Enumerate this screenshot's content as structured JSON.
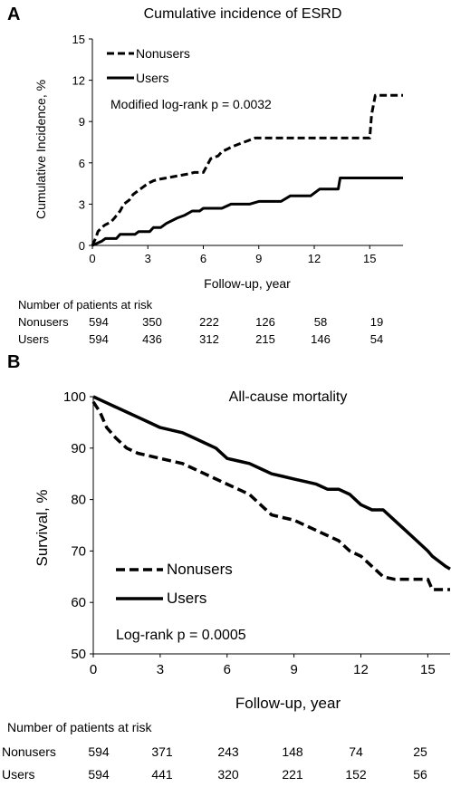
{
  "chart_data": [
    {
      "panel": "A",
      "type": "line",
      "title": "Cumulative incidence of ESRD",
      "xlabel": "Follow-up, year",
      "ylabel": "Cumulative Incidence, %",
      "xticks": [
        0,
        3,
        6,
        9,
        12,
        15
      ],
      "yticks": [
        0,
        3,
        6,
        9,
        12,
        15
      ],
      "xlim": [
        0,
        16.8
      ],
      "ylim": [
        0,
        15
      ],
      "legend_position": "top-left",
      "annotation": "Modified log-rank p = 0.0032",
      "series": [
        {
          "name": "Nonusers",
          "style": "dashed",
          "x": [
            0,
            0.2,
            0.3,
            0.5,
            0.7,
            1.0,
            1.2,
            1.5,
            1.7,
            2.0,
            2.2,
            2.5,
            2.7,
            3.0,
            3.3,
            3.6,
            4.0,
            4.4,
            4.8,
            5.2,
            5.5,
            6.0,
            6.2,
            6.4,
            6.8,
            7.0,
            7.3,
            7.6,
            8.0,
            8.4,
            8.8,
            9.5,
            10.5,
            11.5,
            12.5,
            13.5,
            14.2,
            14.8,
            15.0,
            15.1,
            15.3,
            16.8
          ],
          "y": [
            0,
            0.6,
            1.0,
            1.3,
            1.5,
            1.7,
            2.0,
            2.5,
            3.0,
            3.3,
            3.7,
            4.0,
            4.2,
            4.5,
            4.7,
            4.8,
            4.9,
            5.0,
            5.1,
            5.2,
            5.3,
            5.3,
            5.8,
            6.3,
            6.5,
            6.8,
            7.0,
            7.2,
            7.4,
            7.6,
            7.8,
            7.8,
            7.8,
            7.8,
            7.8,
            7.8,
            7.8,
            7.8,
            7.8,
            9.5,
            10.9,
            10.9
          ]
        },
        {
          "name": "Users",
          "style": "solid",
          "x": [
            0,
            0.5,
            0.7,
            1.3,
            1.5,
            2.3,
            2.5,
            3.1,
            3.3,
            3.7,
            4.0,
            4.6,
            5.0,
            5.4,
            5.8,
            6.0,
            6.5,
            7.0,
            7.5,
            8.0,
            8.5,
            9.0,
            9.6,
            10.2,
            10.7,
            11.3,
            11.8,
            12.3,
            13.3,
            13.4,
            14.5,
            16.8
          ],
          "y": [
            0,
            0.3,
            0.5,
            0.5,
            0.8,
            0.8,
            1.0,
            1.0,
            1.3,
            1.3,
            1.6,
            2.0,
            2.2,
            2.5,
            2.5,
            2.7,
            2.7,
            2.7,
            3.0,
            3.0,
            3.0,
            3.2,
            3.2,
            3.2,
            3.6,
            3.6,
            3.6,
            4.1,
            4.1,
            4.9,
            4.9,
            4.9
          ]
        }
      ],
      "risk_table": {
        "header": "Number of patients at risk",
        "rows": [
          {
            "label": "Nonusers",
            "values": [
              "594",
              "350",
              "222",
              "126",
              "58",
              "19"
            ]
          },
          {
            "label": "Users",
            "values": [
              "594",
              "436",
              "312",
              "215",
              "146",
              "54"
            ]
          }
        ]
      }
    },
    {
      "panel": "B",
      "type": "line",
      "title": "All-cause mortality",
      "xlabel": "Follow-up, year",
      "ylabel": "Survival, %",
      "xticks": [
        0,
        3,
        6,
        9,
        12,
        15
      ],
      "yticks": [
        50,
        60,
        70,
        80,
        90,
        100
      ],
      "xlim": [
        0,
        16
      ],
      "ylim": [
        50,
        100
      ],
      "legend_position": "bottom-left",
      "annotation": "Log-rank p = 0.0005",
      "series": [
        {
          "name": "Nonusers",
          "style": "dashed",
          "x": [
            0,
            0.3,
            0.6,
            1.0,
            1.5,
            2.0,
            2.5,
            3.0,
            3.5,
            4.0,
            4.5,
            5.0,
            5.5,
            6.0,
            6.5,
            7.0,
            7.5,
            8.0,
            8.5,
            9.0,
            9.5,
            10.0,
            10.5,
            11.0,
            11.5,
            12.0,
            12.5,
            13.0,
            13.5,
            14.0,
            14.5,
            15.0,
            15.2,
            16.0
          ],
          "y": [
            99,
            97,
            94,
            92,
            90,
            89,
            88.5,
            88,
            87.5,
            87,
            86,
            85,
            84,
            83,
            82,
            81,
            79,
            77,
            76.5,
            76,
            75,
            74,
            73,
            72,
            70,
            69,
            67,
            65,
            64.5,
            64.5,
            64.5,
            64.5,
            62.5,
            62.5
          ]
        },
        {
          "name": "Users",
          "style": "solid",
          "x": [
            0,
            0.5,
            1.0,
            1.5,
            2.0,
            2.5,
            3.0,
            3.5,
            4.0,
            4.5,
            5.0,
            5.5,
            6.0,
            6.5,
            7.0,
            7.5,
            8.0,
            8.5,
            9.0,
            9.5,
            10.0,
            10.5,
            11.0,
            11.5,
            12.0,
            12.5,
            13.0,
            13.5,
            14.0,
            14.5,
            15.0,
            15.2,
            15.5,
            15.8,
            16.0
          ],
          "y": [
            100,
            99,
            98,
            97,
            96,
            95,
            94,
            93.5,
            93,
            92,
            91,
            90,
            88,
            87.5,
            87,
            86,
            85,
            84.5,
            84,
            83.5,
            83,
            82,
            82,
            81,
            79,
            78,
            78,
            76,
            74,
            72,
            70,
            69,
            68,
            67,
            66.5
          ]
        }
      ],
      "risk_table": {
        "header": "Number of patients at risk",
        "rows": [
          {
            "label": "Nonusers",
            "values": [
              "594",
              "371",
              "243",
              "148",
              "74",
              "25"
            ]
          },
          {
            "label": "Users",
            "values": [
              "594",
              "441",
              "320",
              "221",
              "152",
              "56"
            ]
          }
        ]
      }
    }
  ]
}
